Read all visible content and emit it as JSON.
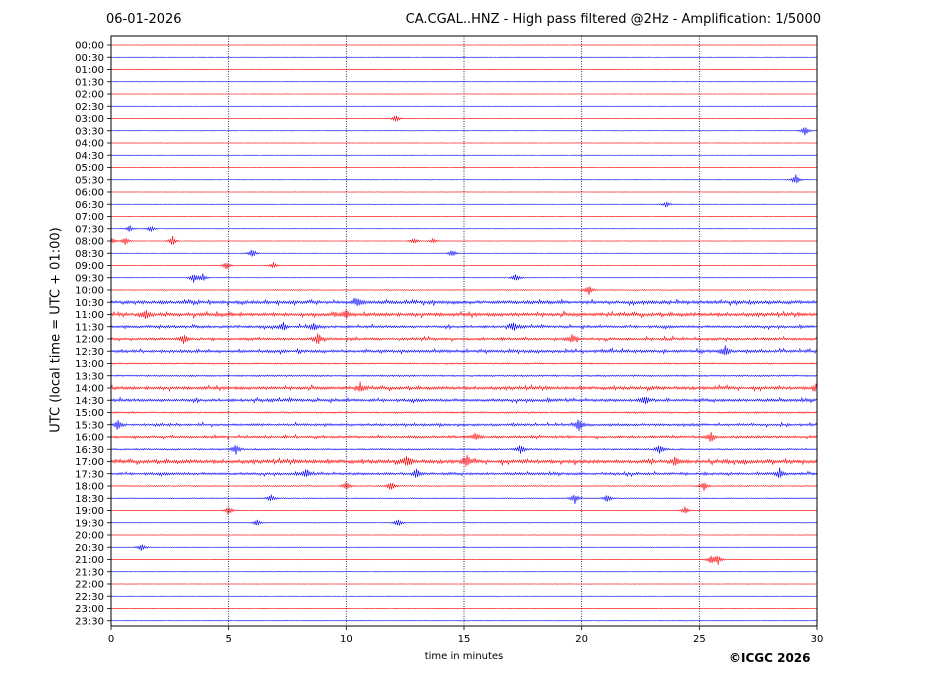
{
  "header": {
    "date": "06-01-2026",
    "title": "CA.CGAL..HNZ - High pass filtered @2Hz - Amplification: 1/5000"
  },
  "copyright": "©ICGC 2026",
  "chart_data": {
    "type": "line",
    "title": "CA.CGAL..HNZ - High pass filtered @2Hz - Amplification: 1/5000",
    "xlabel": "time in minutes",
    "ylabel": "UTC (local time = UTC + 01:00)",
    "xlim": [
      0,
      30
    ],
    "xticks": [
      0,
      5,
      10,
      15,
      20,
      25,
      30
    ],
    "grid": "vertical dotted at every 5 minutes",
    "row_labels": [
      "00:00",
      "00:30",
      "01:00",
      "01:30",
      "02:00",
      "02:30",
      "03:00",
      "03:30",
      "04:00",
      "04:30",
      "05:00",
      "05:30",
      "06:00",
      "06:30",
      "07:00",
      "07:30",
      "08:00",
      "08:30",
      "09:00",
      "09:30",
      "10:00",
      "10:30",
      "11:00",
      "11:30",
      "12:00",
      "12:30",
      "13:00",
      "13:30",
      "14:00",
      "14:30",
      "15:00",
      "15:30",
      "16:00",
      "16:30",
      "17:00",
      "17:30",
      "18:00",
      "18:30",
      "19:00",
      "19:30",
      "20:00",
      "20:30",
      "21:00",
      "21:30",
      "22:00",
      "22:30",
      "23:00",
      "23:30"
    ],
    "trace_colors": [
      "#ff0000",
      "#0000ff"
    ],
    "noise_level": [
      0,
      0,
      0,
      0,
      0,
      0,
      0,
      0,
      0,
      0,
      0,
      0,
      0,
      0,
      0,
      0,
      0,
      0,
      0,
      0,
      0.15,
      0.8,
      0.85,
      0.6,
      0.6,
      0.7,
      0.3,
      0.35,
      0.75,
      0.7,
      0.35,
      0.55,
      0.55,
      0.35,
      0.9,
      0.6,
      0.2,
      0.15,
      0.05,
      0.05,
      0.05,
      0.05,
      0.05,
      0,
      0,
      0,
      0,
      0
    ],
    "events": [
      {
        "row": "03:00",
        "minute": 12.1,
        "amplitude": 0.35
      },
      {
        "row": "03:30",
        "minute": 29.5,
        "amplitude": 0.5
      },
      {
        "row": "05:30",
        "minute": 29.1,
        "amplitude": 0.5
      },
      {
        "row": "06:30",
        "minute": 23.6,
        "amplitude": 0.3
      },
      {
        "row": "07:30",
        "minute": 0.8,
        "amplitude": 0.3
      },
      {
        "row": "07:30",
        "minute": 1.7,
        "amplitude": 0.3
      },
      {
        "row": "08:00",
        "minute": 0.0,
        "amplitude": 0.4
      },
      {
        "row": "08:00",
        "minute": 0.6,
        "amplitude": 0.35
      },
      {
        "row": "08:00",
        "minute": 2.6,
        "amplitude": 0.45
      },
      {
        "row": "08:00",
        "minute": 12.9,
        "amplitude": 0.3
      },
      {
        "row": "08:00",
        "minute": 13.7,
        "amplitude": 0.25
      },
      {
        "row": "08:30",
        "minute": 6.0,
        "amplitude": 0.45
      },
      {
        "row": "08:30",
        "minute": 14.5,
        "amplitude": 0.35
      },
      {
        "row": "09:00",
        "minute": 4.9,
        "amplitude": 0.45
      },
      {
        "row": "09:00",
        "minute": 6.9,
        "amplitude": 0.3
      },
      {
        "row": "09:30",
        "minute": 3.5,
        "amplitude": 0.45
      },
      {
        "row": "09:30",
        "minute": 3.9,
        "amplitude": 0.35
      },
      {
        "row": "09:30",
        "minute": 17.2,
        "amplitude": 0.45
      },
      {
        "row": "10:00",
        "minute": 20.3,
        "amplitude": 0.45
      },
      {
        "row": "10:30",
        "minute": 10.5,
        "amplitude": 0.4
      },
      {
        "row": "11:00",
        "minute": 1.5,
        "amplitude": 0.35
      },
      {
        "row": "11:00",
        "minute": 10.0,
        "amplitude": 0.45
      },
      {
        "row": "11:30",
        "minute": 7.3,
        "amplitude": 0.4
      },
      {
        "row": "11:30",
        "minute": 8.6,
        "amplitude": 0.4
      },
      {
        "row": "11:30",
        "minute": 17.1,
        "amplitude": 0.45
      },
      {
        "row": "12:00",
        "minute": 3.1,
        "amplitude": 0.4
      },
      {
        "row": "12:00",
        "minute": 8.8,
        "amplitude": 0.5
      },
      {
        "row": "12:00",
        "minute": 19.6,
        "amplitude": 0.45
      },
      {
        "row": "12:30",
        "minute": 26.1,
        "amplitude": 0.45
      },
      {
        "row": "14:00",
        "minute": 10.6,
        "amplitude": 0.45
      },
      {
        "row": "14:00",
        "minute": 30.0,
        "amplitude": 0.6
      },
      {
        "row": "14:30",
        "minute": 22.7,
        "amplitude": 0.45
      },
      {
        "row": "15:30",
        "minute": 0.3,
        "amplitude": 0.5
      },
      {
        "row": "15:30",
        "minute": 19.9,
        "amplitude": 0.6
      },
      {
        "row": "16:00",
        "minute": 15.5,
        "amplitude": 0.35
      },
      {
        "row": "16:00",
        "minute": 25.5,
        "amplitude": 0.45
      },
      {
        "row": "16:30",
        "minute": 5.3,
        "amplitude": 0.5
      },
      {
        "row": "16:30",
        "minute": 17.4,
        "amplitude": 0.5
      },
      {
        "row": "16:30",
        "minute": 23.3,
        "amplitude": 0.45
      },
      {
        "row": "17:00",
        "minute": 12.6,
        "amplitude": 0.5
      },
      {
        "row": "17:00",
        "minute": 15.1,
        "amplitude": 0.55
      },
      {
        "row": "17:00",
        "minute": 24.0,
        "amplitude": 0.45
      },
      {
        "row": "17:30",
        "minute": 8.3,
        "amplitude": 0.4
      },
      {
        "row": "17:30",
        "minute": 13.0,
        "amplitude": 0.4
      },
      {
        "row": "17:30",
        "minute": 28.4,
        "amplitude": 0.4
      },
      {
        "row": "18:00",
        "minute": 10.0,
        "amplitude": 0.4
      },
      {
        "row": "18:00",
        "minute": 11.9,
        "amplitude": 0.45
      },
      {
        "row": "18:00",
        "minute": 25.2,
        "amplitude": 0.4
      },
      {
        "row": "18:30",
        "minute": 6.8,
        "amplitude": 0.35
      },
      {
        "row": "18:30",
        "minute": 19.7,
        "amplitude": 0.5
      },
      {
        "row": "18:30",
        "minute": 21.1,
        "amplitude": 0.35
      },
      {
        "row": "19:00",
        "minute": 5.0,
        "amplitude": 0.4
      },
      {
        "row": "19:00",
        "minute": 24.4,
        "amplitude": 0.35
      },
      {
        "row": "19:30",
        "minute": 6.2,
        "amplitude": 0.3
      },
      {
        "row": "19:30",
        "minute": 12.2,
        "amplitude": 0.4
      },
      {
        "row": "20:30",
        "minute": 1.3,
        "amplitude": 0.35
      },
      {
        "row": "21:00",
        "minute": 25.5,
        "amplitude": 0.5
      },
      {
        "row": "21:00",
        "minute": 25.8,
        "amplitude": 0.4
      }
    ]
  }
}
